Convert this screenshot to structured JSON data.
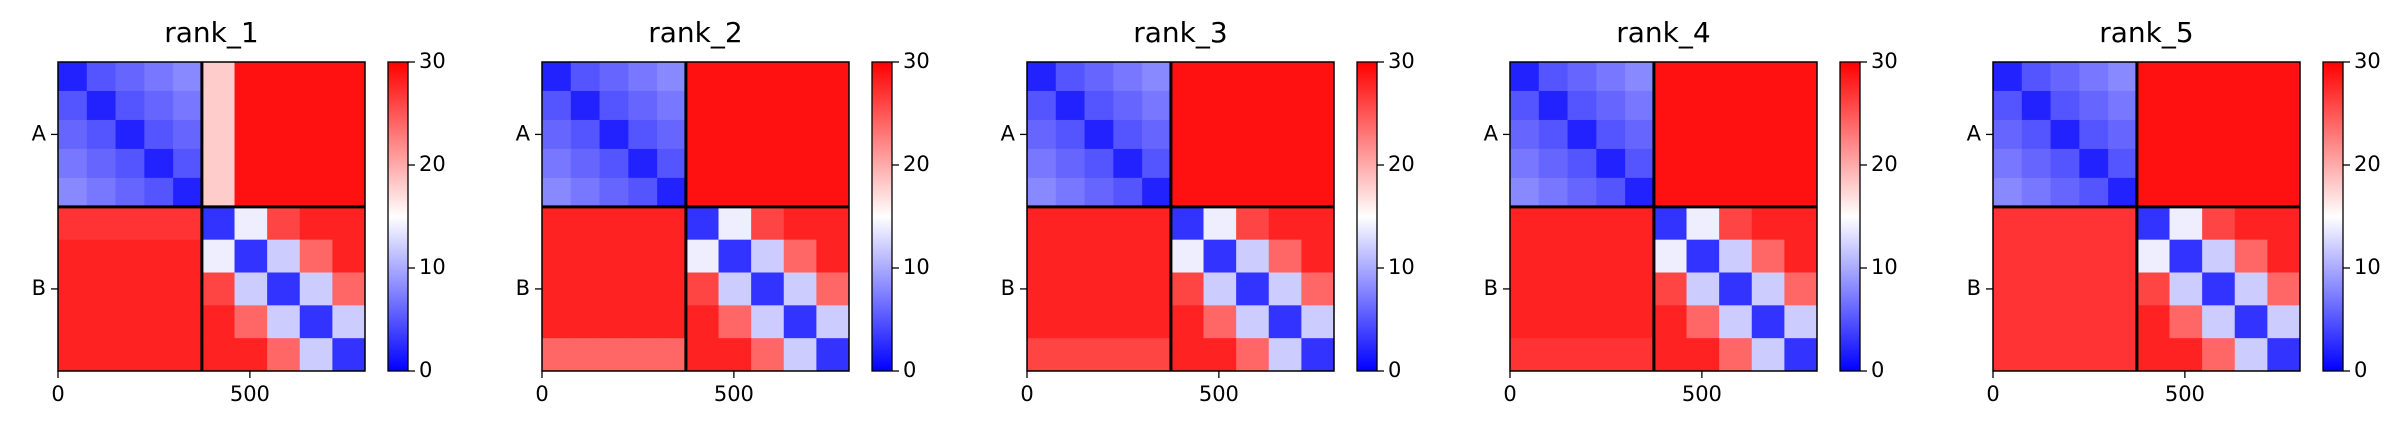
{
  "chart_data": [
    {
      "type": "heatmap",
      "title": "rank_1",
      "colormap": "bwr",
      "bins": [
        0,
        75,
        150,
        225,
        300,
        375,
        460,
        545,
        630,
        715,
        800
      ],
      "xlim": [
        0,
        800
      ],
      "ylim": [
        800,
        0
      ],
      "xticks": [
        0,
        500
      ],
      "yticks": [
        {
          "value": 187.5,
          "label": "A"
        },
        {
          "value": 587.5,
          "label": "B"
        }
      ],
      "boundaries": [
        375
      ],
      "clim": [
        0,
        30
      ],
      "cticks": [
        0,
        10,
        20,
        30
      ],
      "matrix": [
        [
          2,
          5,
          6,
          7,
          8,
          18,
          29,
          29,
          29,
          29
        ],
        [
          5,
          2,
          5,
          6,
          7,
          18,
          29,
          29,
          29,
          29
        ],
        [
          6,
          5,
          2,
          5,
          6,
          18,
          29,
          29,
          29,
          29
        ],
        [
          7,
          6,
          5,
          2,
          5,
          18,
          29,
          29,
          29,
          29
        ],
        [
          8,
          7,
          6,
          5,
          2,
          18,
          29,
          29,
          29,
          29
        ],
        [
          27,
          27,
          27,
          27,
          27,
          3,
          14,
          26,
          28,
          28
        ],
        [
          28,
          28,
          28,
          28,
          28,
          14,
          3,
          12,
          24,
          28
        ],
        [
          28,
          28,
          28,
          28,
          28,
          26,
          12,
          3,
          12,
          24
        ],
        [
          28,
          28,
          28,
          28,
          28,
          28,
          24,
          12,
          3,
          12
        ],
        [
          28,
          28,
          28,
          28,
          28,
          28,
          28,
          24,
          12,
          3
        ]
      ]
    },
    {
      "type": "heatmap",
      "title": "rank_2",
      "colormap": "bwr",
      "bins": [
        0,
        75,
        150,
        225,
        300,
        375,
        460,
        545,
        630,
        715,
        800
      ],
      "xlim": [
        0,
        800
      ],
      "ylim": [
        800,
        0
      ],
      "xticks": [
        0,
        500
      ],
      "yticks": [
        {
          "value": 187.5,
          "label": "A"
        },
        {
          "value": 587.5,
          "label": "B"
        }
      ],
      "boundaries": [
        375
      ],
      "clim": [
        0,
        30
      ],
      "cticks": [
        0,
        10,
        20,
        30
      ],
      "matrix": [
        [
          2,
          5,
          6,
          7,
          8,
          29,
          29,
          29,
          29,
          29
        ],
        [
          5,
          2,
          5,
          6,
          7,
          29,
          29,
          29,
          29,
          29
        ],
        [
          6,
          5,
          2,
          5,
          6,
          29,
          29,
          29,
          29,
          29
        ],
        [
          7,
          6,
          5,
          2,
          5,
          29,
          29,
          29,
          29,
          29
        ],
        [
          8,
          7,
          6,
          5,
          2,
          29,
          29,
          29,
          29,
          29
        ],
        [
          28,
          28,
          28,
          28,
          28,
          3,
          14,
          26,
          28,
          28
        ],
        [
          28,
          28,
          28,
          28,
          28,
          14,
          3,
          12,
          24,
          28
        ],
        [
          28,
          28,
          28,
          28,
          28,
          26,
          12,
          3,
          12,
          24
        ],
        [
          28,
          28,
          28,
          28,
          28,
          28,
          24,
          12,
          3,
          12
        ],
        [
          24,
          24,
          24,
          24,
          24,
          28,
          28,
          24,
          12,
          3
        ]
      ]
    },
    {
      "type": "heatmap",
      "title": "rank_3",
      "colormap": "bwr",
      "bins": [
        0,
        75,
        150,
        225,
        300,
        375,
        460,
        545,
        630,
        715,
        800
      ],
      "xlim": [
        0,
        800
      ],
      "ylim": [
        800,
        0
      ],
      "xticks": [
        0,
        500
      ],
      "yticks": [
        {
          "value": 187.5,
          "label": "A"
        },
        {
          "value": 587.5,
          "label": "B"
        }
      ],
      "boundaries": [
        375
      ],
      "clim": [
        0,
        30
      ],
      "cticks": [
        0,
        10,
        20,
        30
      ],
      "matrix": [
        [
          2,
          5,
          6,
          7,
          8,
          29,
          29,
          29,
          29,
          29
        ],
        [
          5,
          2,
          5,
          6,
          7,
          29,
          29,
          29,
          29,
          29
        ],
        [
          6,
          5,
          2,
          5,
          6,
          29,
          29,
          29,
          29,
          29
        ],
        [
          7,
          6,
          5,
          2,
          5,
          29,
          29,
          29,
          29,
          29
        ],
        [
          8,
          7,
          6,
          5,
          2,
          29,
          29,
          29,
          29,
          29
        ],
        [
          28,
          28,
          28,
          28,
          28,
          3,
          14,
          26,
          28,
          28
        ],
        [
          28,
          28,
          28,
          28,
          28,
          14,
          3,
          12,
          24,
          28
        ],
        [
          28,
          28,
          28,
          28,
          28,
          26,
          12,
          3,
          12,
          24
        ],
        [
          28,
          28,
          28,
          28,
          28,
          28,
          24,
          12,
          3,
          12
        ],
        [
          26,
          26,
          26,
          26,
          26,
          28,
          28,
          24,
          12,
          3
        ]
      ]
    },
    {
      "type": "heatmap",
      "title": "rank_4",
      "colormap": "bwr",
      "bins": [
        0,
        75,
        150,
        225,
        300,
        375,
        460,
        545,
        630,
        715,
        800
      ],
      "xlim": [
        0,
        800
      ],
      "ylim": [
        800,
        0
      ],
      "xticks": [
        0,
        500
      ],
      "yticks": [
        {
          "value": 187.5,
          "label": "A"
        },
        {
          "value": 587.5,
          "label": "B"
        }
      ],
      "boundaries": [
        375
      ],
      "clim": [
        0,
        30
      ],
      "cticks": [
        0,
        10,
        20,
        30
      ],
      "matrix": [
        [
          2,
          5,
          6,
          7,
          8,
          29,
          29,
          29,
          29,
          29
        ],
        [
          5,
          2,
          5,
          6,
          7,
          29,
          29,
          29,
          29,
          29
        ],
        [
          6,
          5,
          2,
          5,
          6,
          29,
          29,
          29,
          29,
          29
        ],
        [
          7,
          6,
          5,
          2,
          5,
          29,
          29,
          29,
          29,
          29
        ],
        [
          8,
          7,
          6,
          5,
          2,
          29,
          29,
          29,
          29,
          29
        ],
        [
          28,
          28,
          28,
          28,
          28,
          3,
          14,
          26,
          28,
          28
        ],
        [
          28,
          28,
          28,
          28,
          28,
          14,
          3,
          12,
          24,
          28
        ],
        [
          28,
          28,
          28,
          28,
          28,
          26,
          12,
          3,
          12,
          24
        ],
        [
          28,
          28,
          28,
          28,
          28,
          28,
          24,
          12,
          3,
          12
        ],
        [
          27,
          27,
          27,
          27,
          27,
          28,
          28,
          24,
          12,
          3
        ]
      ]
    },
    {
      "type": "heatmap",
      "title": "rank_5",
      "colormap": "bwr",
      "bins": [
        0,
        75,
        150,
        225,
        300,
        375,
        460,
        545,
        630,
        715,
        800
      ],
      "xlim": [
        0,
        800
      ],
      "ylim": [
        800,
        0
      ],
      "xticks": [
        0,
        500
      ],
      "yticks": [
        {
          "value": 187.5,
          "label": "A"
        },
        {
          "value": 587.5,
          "label": "B"
        }
      ],
      "boundaries": [
        375
      ],
      "clim": [
        0,
        30
      ],
      "cticks": [
        0,
        10,
        20,
        30
      ],
      "matrix": [
        [
          2,
          5,
          6,
          7,
          8,
          29,
          29,
          29,
          29,
          29
        ],
        [
          5,
          2,
          5,
          6,
          7,
          29,
          29,
          29,
          29,
          29
        ],
        [
          6,
          5,
          2,
          5,
          6,
          29,
          29,
          29,
          29,
          29
        ],
        [
          7,
          6,
          5,
          2,
          5,
          29,
          29,
          29,
          29,
          29
        ],
        [
          8,
          7,
          6,
          5,
          2,
          29,
          29,
          29,
          29,
          29
        ],
        [
          27,
          27,
          27,
          27,
          27,
          3,
          14,
          26,
          28,
          28
        ],
        [
          27,
          27,
          27,
          27,
          27,
          14,
          3,
          12,
          24,
          28
        ],
        [
          27,
          27,
          27,
          27,
          27,
          26,
          12,
          3,
          12,
          24
        ],
        [
          27,
          27,
          27,
          27,
          27,
          28,
          24,
          12,
          3,
          12
        ],
        [
          27,
          27,
          27,
          27,
          27,
          28,
          28,
          24,
          12,
          3
        ]
      ]
    }
  ]
}
